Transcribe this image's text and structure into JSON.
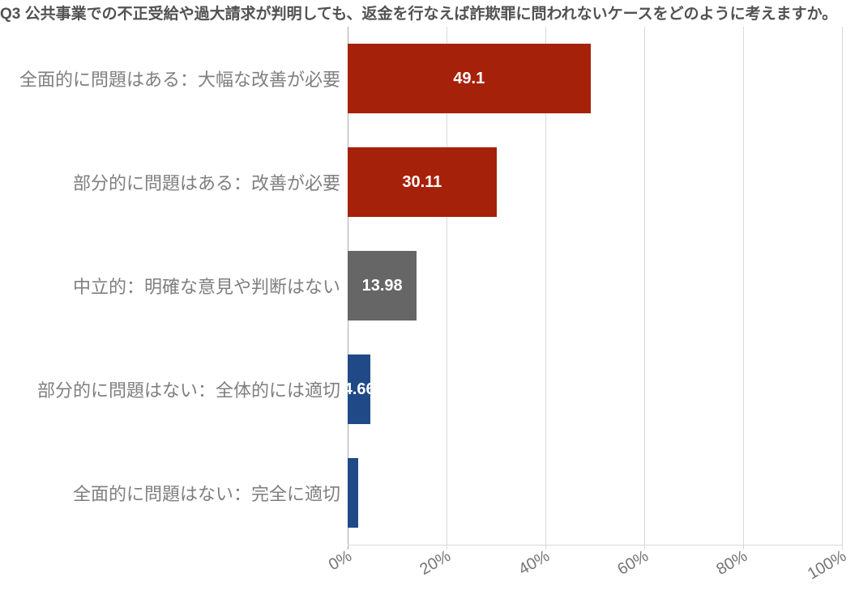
{
  "chart_data": {
    "type": "bar",
    "orientation": "horizontal",
    "title": "Q3 公共事業での不正受給や過大請求が判明しても、返金を行なえば詐欺罪に問われないケースをどのように考えますか。",
    "categories": [
      "全面的に問題はある：大幅な改善が必要",
      "部分的に問題はある：改善が必要",
      "中立的：明確な意見や判断はない",
      "部分的に問題はない：全体的には適切",
      "全面的に問題はない：完全に適切"
    ],
    "values": [
      49.1,
      30.11,
      13.98,
      4.66,
      2.15
    ],
    "bar_labels": [
      "49.1",
      "30.11",
      "13.98",
      "4.66",
      ""
    ],
    "bar_colors": [
      "#A62109",
      "#A62109",
      "#666666",
      "#1F4A87",
      "#1F4A87"
    ],
    "xticks": [
      "0%",
      "20%",
      "40%",
      "60%",
      "80%",
      "100%"
    ],
    "xtick_values": [
      0,
      20,
      40,
      60,
      80,
      100
    ],
    "xlim": [
      0,
      100
    ],
    "xlabel": "",
    "ylabel": "",
    "grid": "vertical",
    "legend": "none"
  },
  "colors": {
    "background": "#FFFFFF",
    "grid_line": "#D9D9D9",
    "zero_line": "#ABABAB",
    "title_text": "#525252",
    "category_text": "#7F7F7F",
    "tick_text": "#757575",
    "value_text": "#FFFFFF"
  }
}
